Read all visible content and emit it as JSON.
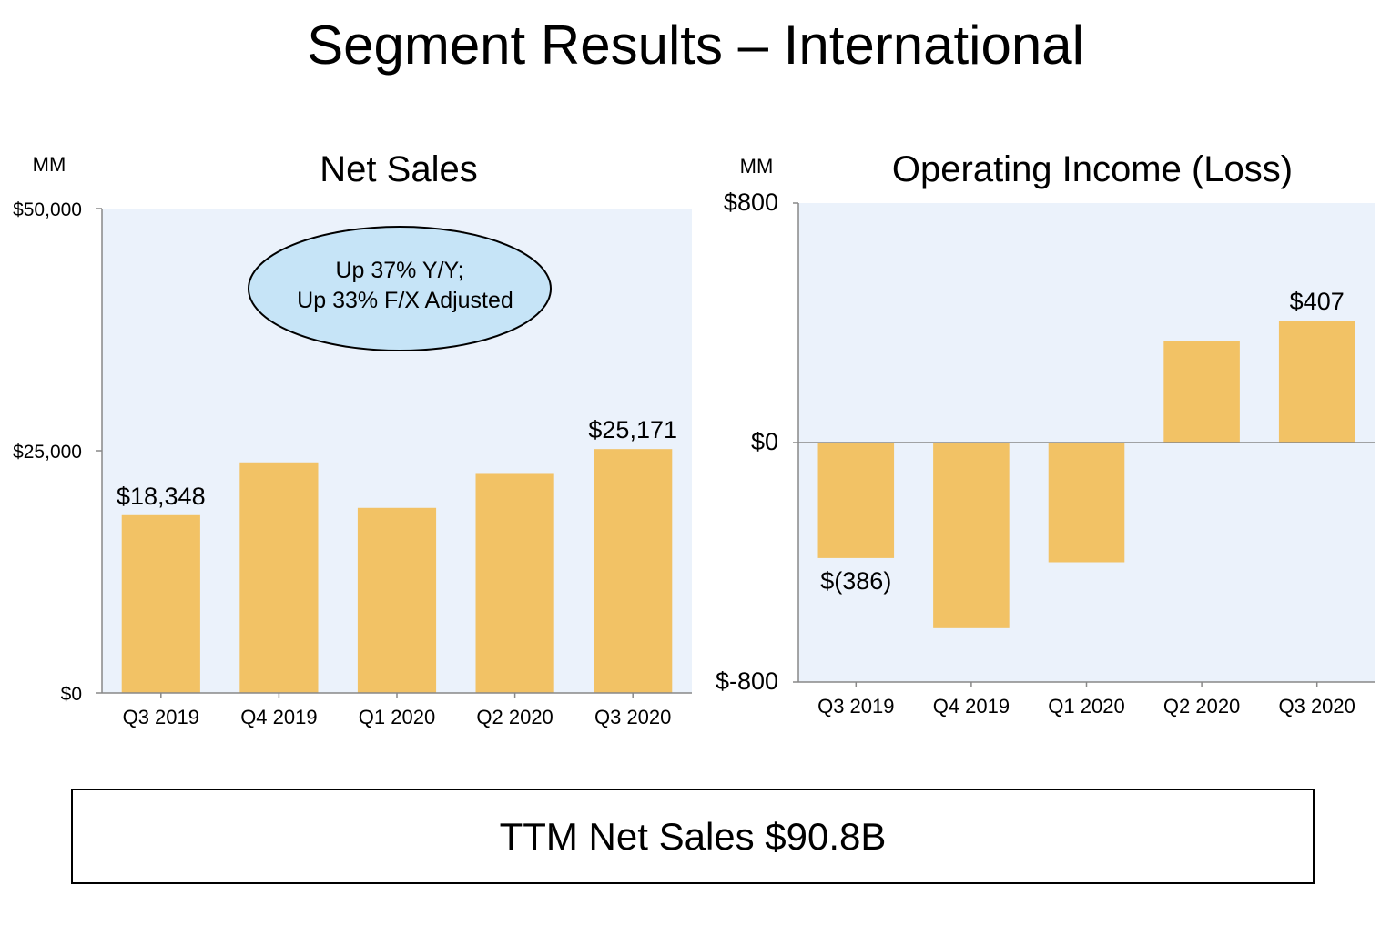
{
  "page": {
    "title": "Segment Results – International",
    "footer": "TTM Net Sales $90.8B"
  },
  "colors": {
    "bar": "#F2C265",
    "plot_bg": "#EBF2FB",
    "callout_fill": "#C6E4F7",
    "axis": "#888888"
  },
  "chart_data": [
    {
      "type": "bar",
      "title": "Net Sales",
      "unit_label": "MM",
      "categories": [
        "Q3 2019",
        "Q4 2019",
        "Q1 2020",
        "Q2 2020",
        "Q3 2020"
      ],
      "values": [
        18348,
        23800,
        19100,
        22700,
        25171
      ],
      "data_labels": [
        "$18,348",
        "",
        "",
        "",
        "$25,171"
      ],
      "ylim": [
        0,
        50000
      ],
      "yticks": [
        0,
        25000,
        50000
      ],
      "ytick_labels": [
        "$0",
        "$25,000",
        "$50,000"
      ],
      "annotation": [
        "Up 37% Y/Y;",
        "Up 33% F/X Adjusted"
      ]
    },
    {
      "type": "bar",
      "title": "Operating Income (Loss)",
      "unit_label": "MM",
      "categories": [
        "Q3 2019",
        "Q4 2019",
        "Q1 2020",
        "Q2 2020",
        "Q3 2020"
      ],
      "values": [
        -386,
        -620,
        -400,
        340,
        407
      ],
      "data_labels": [
        "$(386)",
        "",
        "",
        "",
        "$407"
      ],
      "ylim": [
        -800,
        800
      ],
      "yticks": [
        -800,
        0,
        800
      ],
      "ytick_labels": [
        "$-800",
        "$0",
        "$800"
      ]
    }
  ]
}
